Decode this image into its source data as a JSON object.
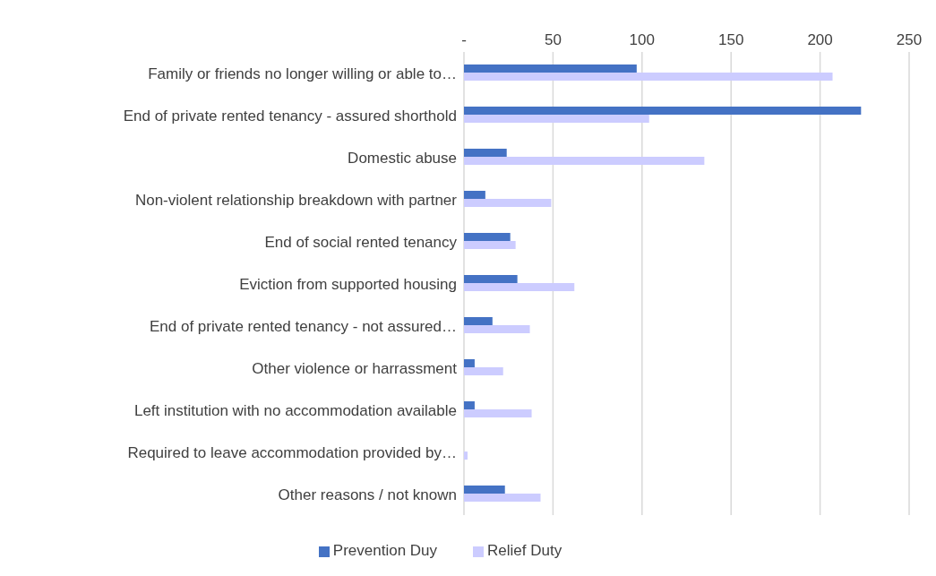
{
  "chart_data": {
    "type": "bar",
    "orientation": "horizontal",
    "categories": [
      "Family or friends no longer willing or able to…",
      "End of private rented tenancy - assured shorthold",
      "Domestic abuse",
      "Non-violent relationship breakdown with partner",
      "End of social rented tenancy",
      "Eviction from supported housing",
      "End of private rented tenancy - not assured…",
      "Other violence or harrassment",
      "Left institution with no accommodation available",
      "Required to leave accommodation provided by…",
      "Other reasons / not known"
    ],
    "series": [
      {
        "name": "Prevention Duy",
        "color": "#4472c4",
        "values": [
          97,
          223,
          24,
          12,
          26,
          30,
          16,
          6,
          6,
          0,
          23
        ]
      },
      {
        "name": "Relief Duty",
        "color": "#ccccff",
        "values": [
          207,
          104,
          135,
          49,
          29,
          62,
          37,
          22,
          38,
          2,
          43
        ]
      }
    ],
    "xlim": [
      0,
      250
    ],
    "xticks": [
      {
        "value": 0,
        "label": "-"
      },
      50,
      100,
      150,
      200,
      250
    ],
    "grid": "x",
    "legend": "bottom"
  }
}
